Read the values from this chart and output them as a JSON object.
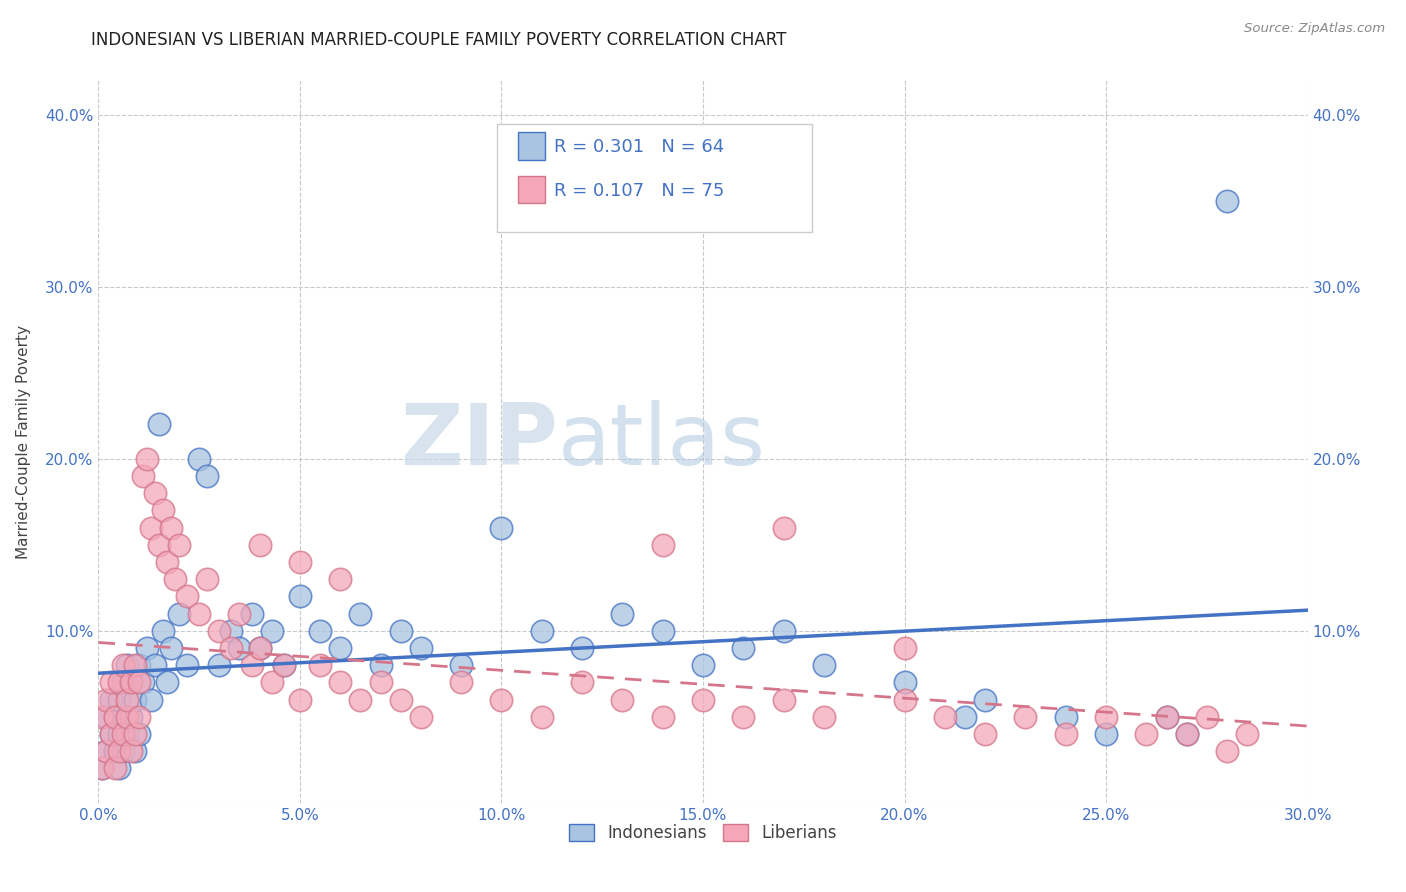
{
  "title": "INDONESIAN VS LIBERIAN MARRIED-COUPLE FAMILY POVERTY CORRELATION CHART",
  "source": "Source: ZipAtlas.com",
  "ylabel": "Married-Couple Family Poverty",
  "xlim": [
    0.0,
    0.3
  ],
  "ylim": [
    0.0,
    0.42
  ],
  "color_indonesian": "#a8c4e0",
  "color_liberian": "#f4a7b9",
  "color_line_indonesian": "#4472c4",
  "color_line_liberian": "#d4758a",
  "background_color": "#ffffff",
  "legend_text_1": "R = 0.301   N = 64",
  "legend_text_2": "R = 0.107   N = 75",
  "watermark_zip": "ZIP",
  "watermark_atlas": "atlas",
  "indonesian_x": [
    0.001,
    0.002,
    0.002,
    0.003,
    0.003,
    0.004,
    0.004,
    0.005,
    0.005,
    0.005,
    0.006,
    0.006,
    0.007,
    0.007,
    0.008,
    0.008,
    0.009,
    0.009,
    0.01,
    0.01,
    0.011,
    0.012,
    0.013,
    0.014,
    0.015,
    0.016,
    0.017,
    0.018,
    0.02,
    0.022,
    0.025,
    0.027,
    0.03,
    0.033,
    0.035,
    0.038,
    0.04,
    0.043,
    0.046,
    0.05,
    0.055,
    0.06,
    0.065,
    0.07,
    0.075,
    0.08,
    0.09,
    0.1,
    0.11,
    0.12,
    0.13,
    0.14,
    0.15,
    0.16,
    0.17,
    0.18,
    0.2,
    0.215,
    0.22,
    0.24,
    0.25,
    0.265,
    0.27,
    0.28
  ],
  "indonesian_y": [
    0.02,
    0.03,
    0.05,
    0.04,
    0.06,
    0.03,
    0.05,
    0.02,
    0.04,
    0.06,
    0.03,
    0.07,
    0.04,
    0.08,
    0.05,
    0.07,
    0.03,
    0.06,
    0.04,
    0.08,
    0.07,
    0.09,
    0.06,
    0.08,
    0.22,
    0.1,
    0.07,
    0.09,
    0.11,
    0.08,
    0.2,
    0.19,
    0.08,
    0.1,
    0.09,
    0.11,
    0.09,
    0.1,
    0.08,
    0.12,
    0.1,
    0.09,
    0.11,
    0.08,
    0.1,
    0.09,
    0.08,
    0.16,
    0.1,
    0.09,
    0.11,
    0.1,
    0.08,
    0.09,
    0.1,
    0.08,
    0.07,
    0.05,
    0.06,
    0.05,
    0.04,
    0.05,
    0.04,
    0.35
  ],
  "liberian_x": [
    0.001,
    0.001,
    0.002,
    0.002,
    0.003,
    0.003,
    0.004,
    0.004,
    0.005,
    0.005,
    0.006,
    0.006,
    0.007,
    0.007,
    0.008,
    0.008,
    0.009,
    0.009,
    0.01,
    0.01,
    0.011,
    0.012,
    0.013,
    0.014,
    0.015,
    0.016,
    0.017,
    0.018,
    0.019,
    0.02,
    0.022,
    0.025,
    0.027,
    0.03,
    0.033,
    0.035,
    0.038,
    0.04,
    0.043,
    0.046,
    0.05,
    0.055,
    0.06,
    0.065,
    0.07,
    0.075,
    0.08,
    0.09,
    0.1,
    0.11,
    0.12,
    0.13,
    0.14,
    0.15,
    0.16,
    0.17,
    0.18,
    0.2,
    0.21,
    0.22,
    0.23,
    0.24,
    0.25,
    0.26,
    0.265,
    0.27,
    0.275,
    0.28,
    0.285,
    0.17,
    0.04,
    0.05,
    0.06,
    0.14,
    0.2
  ],
  "liberian_y": [
    0.02,
    0.05,
    0.03,
    0.06,
    0.04,
    0.07,
    0.02,
    0.05,
    0.03,
    0.07,
    0.04,
    0.08,
    0.05,
    0.06,
    0.03,
    0.07,
    0.04,
    0.08,
    0.05,
    0.07,
    0.19,
    0.2,
    0.16,
    0.18,
    0.15,
    0.17,
    0.14,
    0.16,
    0.13,
    0.15,
    0.12,
    0.11,
    0.13,
    0.1,
    0.09,
    0.11,
    0.08,
    0.09,
    0.07,
    0.08,
    0.06,
    0.08,
    0.07,
    0.06,
    0.07,
    0.06,
    0.05,
    0.07,
    0.06,
    0.05,
    0.07,
    0.06,
    0.05,
    0.06,
    0.05,
    0.06,
    0.05,
    0.06,
    0.05,
    0.04,
    0.05,
    0.04,
    0.05,
    0.04,
    0.05,
    0.04,
    0.05,
    0.03,
    0.04,
    0.16,
    0.15,
    0.14,
    0.13,
    0.15,
    0.09
  ]
}
